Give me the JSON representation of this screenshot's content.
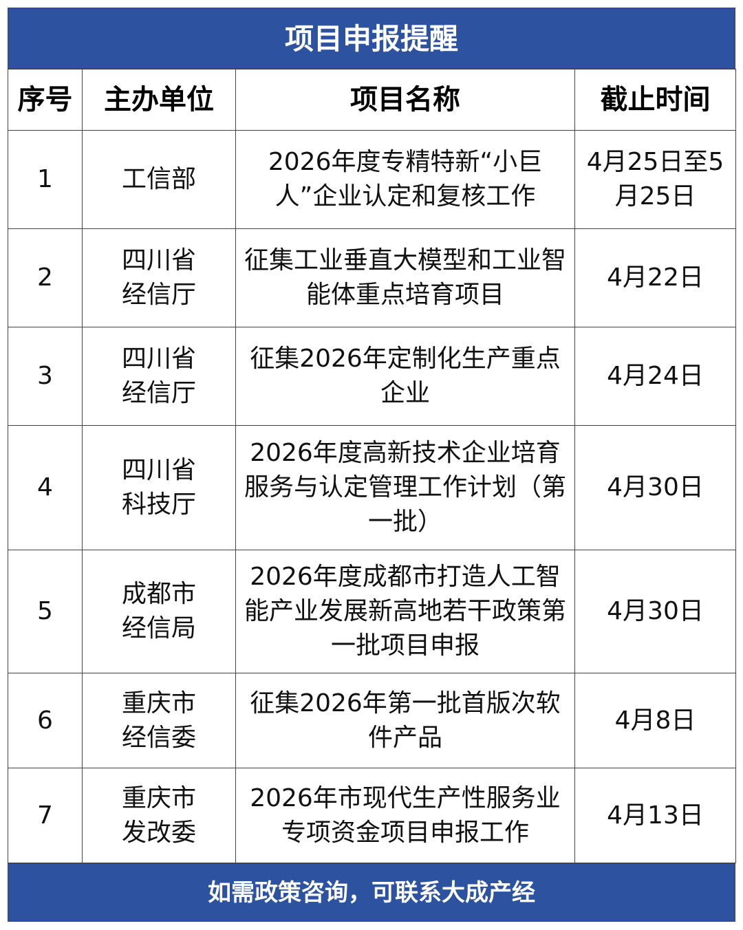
{
  "title": "项目申报提醒",
  "headers": [
    "序号",
    "主办单位",
    "项目名称",
    "截止时间"
  ],
  "rows": [
    {
      "no": "1",
      "org": "工信部",
      "name": "2026年度专精特新“小巨人”企业认定和复核工作",
      "deadline": "4月25日至5月25日"
    },
    {
      "no": "2",
      "org": "四川省经信厅",
      "name": "征集工业垂直大模型和工业智能体重点培育项目",
      "deadline": "4月22日"
    },
    {
      "no": "3",
      "org": "四川省经信厅",
      "name": "征集2026年定制化生产重点企业",
      "deadline": "4月24日"
    },
    {
      "no": "4",
      "org": "四川省科技厅",
      "name": "2026年度高新技术企业培育服务与认定管理工作计划（第一批）",
      "deadline": "4月30日"
    },
    {
      "no": "5",
      "org": "成都市经信局",
      "name": "2026年度成都市打造人工智能产业发展新高地若干政策第一批项目申报",
      "deadline": "4月30日"
    },
    {
      "no": "6",
      "org": "重庆市经信委",
      "name": "征集2026年第一批首版次软件产品",
      "deadline": "4月8日"
    },
    {
      "no": "7",
      "org": "重庆市发改委",
      "name": "2026年市现代生产性服务业专项资金项目申报工作",
      "deadline": "4月13日"
    }
  ],
  "footer": "如需政策咨询，可联系大成产经",
  "colors": {
    "banner": "#2d52a0"
  }
}
